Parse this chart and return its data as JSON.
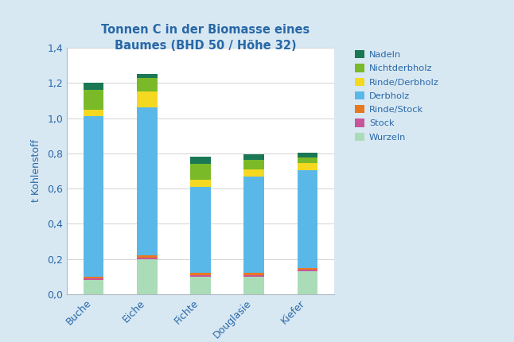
{
  "title": "Tonnen C in der Biomasse eines\nBaumes (BHD 50 / Höhe 32)",
  "ylabel": "t Kohlenstoff",
  "categories": [
    "Buche",
    "Eiche",
    "Fichte",
    "Douglasie",
    "Kiefer"
  ],
  "series": {
    "Wurzeln": [
      0.08,
      0.2,
      0.1,
      0.1,
      0.13
    ],
    "Stock": [
      0.008,
      0.008,
      0.008,
      0.008,
      0.008
    ],
    "Rinde/Stock": [
      0.012,
      0.012,
      0.012,
      0.012,
      0.012
    ],
    "Derbholz": [
      0.91,
      0.84,
      0.49,
      0.55,
      0.555
    ],
    "Rinde/Derbholz": [
      0.04,
      0.09,
      0.04,
      0.04,
      0.04
    ],
    "Nichtderbholz": [
      0.11,
      0.08,
      0.09,
      0.055,
      0.03
    ],
    "Nadeln": [
      0.04,
      0.02,
      0.04,
      0.03,
      0.03
    ]
  },
  "colors": {
    "Wurzeln": "#aadcb8",
    "Stock": "#c8559a",
    "Rinde/Stock": "#e87820",
    "Derbholz": "#5ab8e8",
    "Rinde/Derbholz": "#f5d820",
    "Nichtderbholz": "#7aba28",
    "Nadeln": "#1a7855"
  },
  "legend_order": [
    "Nadeln",
    "Nichtderbholz",
    "Rinde/Derbholz",
    "Derbholz",
    "Rinde/Stock",
    "Stock",
    "Wurzeln"
  ],
  "ylim": [
    0,
    1.4
  ],
  "yticks": [
    0,
    0.2,
    0.4,
    0.6,
    0.8,
    1.0,
    1.2,
    1.4
  ],
  "background_color": "#d8e8f2",
  "plot_background": "#ffffff",
  "title_color": "#2868a8",
  "label_color": "#2868a8",
  "tick_color": "#2868a8",
  "bar_width": 0.38,
  "figsize": [
    6.46,
    4.3
  ],
  "dpi": 100
}
